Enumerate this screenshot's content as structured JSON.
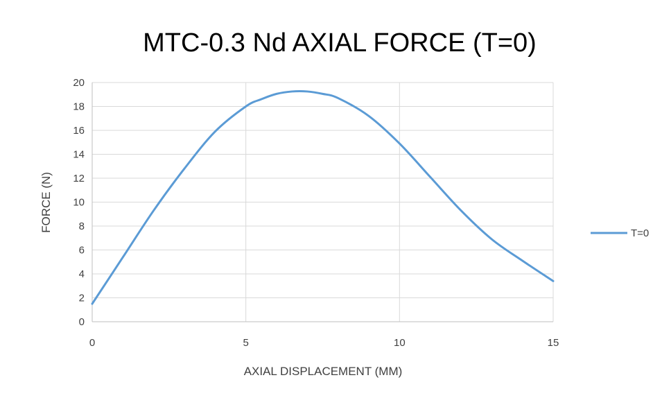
{
  "chart_data": {
    "type": "line",
    "title": "MTC-0.3 Nd AXIAL FORCE (T=0)",
    "xlabel": "AXIAL DISPLACEMENT  (MM)",
    "ylabel": "FORCE (N)",
    "xlim": [
      0,
      15
    ],
    "ylim": [
      0,
      20
    ],
    "xticks": [
      0,
      5,
      10,
      15
    ],
    "yticks": [
      0,
      2,
      4,
      6,
      8,
      10,
      12,
      14,
      16,
      18,
      20
    ],
    "grid": true,
    "legend_position": "right",
    "series": [
      {
        "name": "T=0",
        "color": "#5b9bd5",
        "x": [
          0,
          1,
          2,
          3,
          4,
          5,
          5.5,
          6,
          6.5,
          7,
          7.5,
          8,
          9,
          10,
          11,
          12,
          13,
          14,
          15
        ],
        "y": [
          1.5,
          5.4,
          9.3,
          12.8,
          15.9,
          18.0,
          18.6,
          19.05,
          19.25,
          19.25,
          19.05,
          18.7,
          17.2,
          14.9,
          12.1,
          9.3,
          6.9,
          5.1,
          3.4
        ]
      }
    ]
  }
}
